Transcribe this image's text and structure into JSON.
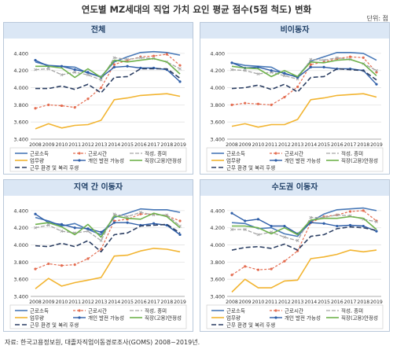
{
  "title": "연도별 MZ세대의 직업 가치 요인 평균 점수(5점 척도) 변화",
  "unit": "단위: 점",
  "source": "자료: 한국고용정보원, 대졸자직업이동경로조사(GOMS) 2008~2019년.",
  "colors": {
    "근로소득": "#4a7ab8",
    "근로시간": "#e46d51",
    "적성, 흥미": "#a6a6a6",
    "업무량": "#f2b430",
    "개인 발전 가능성": "#2e5ea8",
    "직장(고용)안정성": "#6fb24d",
    "근무 환경 및 복리 후생": "#2c3f63"
  },
  "chart_data": [
    {
      "type": "line",
      "title": "전체",
      "x": [
        "2008",
        "2009",
        "2010",
        "2011",
        "2012",
        "2013",
        "2014",
        "2015",
        "2016",
        "2017",
        "2018",
        "2019"
      ],
      "ylim": [
        3.4,
        4.5
      ],
      "yticks": [
        "3.400",
        "3.600",
        "3.800",
        "4.000",
        "4.200",
        "4.400"
      ],
      "series": [
        {
          "name": "근로소득",
          "values": [
            4.3,
            4.26,
            4.25,
            4.24,
            4.17,
            4.13,
            4.3,
            4.36,
            4.41,
            4.42,
            4.41,
            4.38
          ]
        },
        {
          "name": "근로시간",
          "values": [
            3.76,
            3.8,
            3.79,
            3.77,
            3.87,
            4.0,
            4.27,
            4.32,
            4.36,
            4.37,
            4.39,
            4.26
          ]
        },
        {
          "name": "적성, 흥미",
          "values": [
            4.21,
            4.22,
            4.15,
            4.18,
            4.15,
            4.09,
            4.35,
            4.33,
            4.35,
            4.34,
            4.3,
            4.22
          ]
        },
        {
          "name": "업무량",
          "values": [
            3.52,
            3.58,
            3.53,
            3.56,
            3.57,
            3.62,
            3.86,
            3.88,
            3.91,
            3.92,
            3.93,
            3.9
          ]
        },
        {
          "name": "개인 발전 가능성",
          "values": [
            4.32,
            4.25,
            4.25,
            4.21,
            4.18,
            4.12,
            4.24,
            4.25,
            4.23,
            4.23,
            4.21,
            4.07
          ]
        },
        {
          "name": "직장(고용)안정성",
          "values": [
            4.25,
            4.25,
            4.23,
            4.12,
            4.22,
            4.12,
            4.32,
            4.3,
            4.32,
            4.34,
            4.3,
            4.16
          ]
        },
        {
          "name": "근무 환경 및 복리 후생",
          "values": [
            3.99,
            3.99,
            4.02,
            3.98,
            4.04,
            3.94,
            4.12,
            4.13,
            4.22,
            4.22,
            4.22,
            4.11
          ]
        }
      ]
    },
    {
      "type": "line",
      "title": "비이동자",
      "x": [
        "2008",
        "2009",
        "2010",
        "2011",
        "2012",
        "2013",
        "2014",
        "2015",
        "2016",
        "2017",
        "2018",
        "2019"
      ],
      "ylim": [
        3.4,
        4.5
      ],
      "yticks": [
        "3.400",
        "3.600",
        "3.800",
        "4.000",
        "4.200",
        "4.400"
      ],
      "series": [
        {
          "name": "근로소득",
          "values": [
            4.29,
            4.26,
            4.25,
            4.24,
            4.16,
            4.13,
            4.31,
            4.36,
            4.41,
            4.41,
            4.4,
            4.32
          ]
        },
        {
          "name": "근로시간",
          "values": [
            3.8,
            3.82,
            3.81,
            3.8,
            3.89,
            4.01,
            4.27,
            4.3,
            4.34,
            4.36,
            4.35,
            4.18
          ]
        },
        {
          "name": "적성, 흥미",
          "values": [
            4.21,
            4.2,
            4.16,
            4.18,
            4.14,
            4.1,
            4.33,
            4.32,
            4.35,
            4.33,
            4.28,
            4.2
          ]
        },
        {
          "name": "업무량",
          "values": [
            3.55,
            3.58,
            3.54,
            3.57,
            3.57,
            3.63,
            3.86,
            3.88,
            3.91,
            3.92,
            3.93,
            3.89
          ]
        },
        {
          "name": "개인 발전 가능성",
          "values": [
            4.29,
            4.23,
            4.24,
            4.2,
            4.17,
            4.12,
            4.24,
            4.24,
            4.22,
            4.22,
            4.2,
            4.04
          ]
        },
        {
          "name": "직장(고용)안정성",
          "values": [
            4.25,
            4.23,
            4.22,
            4.13,
            4.2,
            4.13,
            4.3,
            4.29,
            4.32,
            4.33,
            4.28,
            4.14
          ]
        },
        {
          "name": "근무 환경 및 복리 후생",
          "values": [
            3.99,
            4.0,
            4.03,
            3.98,
            4.04,
            3.95,
            4.12,
            4.13,
            4.22,
            4.21,
            4.2,
            4.09
          ]
        }
      ]
    },
    {
      "type": "line",
      "title": "지역 간 이동자",
      "x": [
        "2008",
        "2009",
        "2010",
        "2011",
        "2012",
        "2013",
        "2014",
        "2015",
        "2016",
        "2017",
        "2018",
        "2019"
      ],
      "ylim": [
        3.4,
        4.5
      ],
      "yticks": [
        "3.400",
        "3.600",
        "3.800",
        "4.000",
        "4.200",
        "4.400"
      ],
      "series": [
        {
          "name": "근로소득",
          "values": [
            4.32,
            4.28,
            4.22,
            4.25,
            4.18,
            4.12,
            4.32,
            4.37,
            4.42,
            4.41,
            4.41,
            4.38
          ]
        },
        {
          "name": "근로시간",
          "values": [
            3.72,
            3.78,
            3.76,
            3.77,
            3.84,
            3.95,
            4.28,
            4.3,
            4.36,
            4.36,
            4.34,
            4.28
          ]
        },
        {
          "name": "적성, 흥미",
          "values": [
            4.2,
            4.23,
            4.16,
            4.14,
            4.16,
            4.05,
            4.36,
            4.33,
            4.38,
            4.35,
            4.35,
            4.22
          ]
        },
        {
          "name": "업무량",
          "values": [
            3.49,
            3.61,
            3.52,
            3.56,
            3.59,
            3.62,
            3.87,
            3.88,
            3.93,
            3.96,
            3.95,
            3.92
          ]
        },
        {
          "name": "개인 발전 가능성",
          "values": [
            4.36,
            4.26,
            4.24,
            4.2,
            4.19,
            4.15,
            4.26,
            4.26,
            4.23,
            4.25,
            4.23,
            4.12
          ]
        },
        {
          "name": "직장(고용)안정성",
          "values": [
            4.24,
            4.26,
            4.21,
            4.12,
            4.24,
            4.09,
            4.34,
            4.31,
            4.3,
            4.37,
            4.33,
            4.2
          ]
        },
        {
          "name": "근무 환경 및 복리 후생",
          "values": [
            3.99,
            3.98,
            4.02,
            3.98,
            4.05,
            3.92,
            4.12,
            4.14,
            4.22,
            4.23,
            4.24,
            4.14
          ]
        }
      ]
    },
    {
      "type": "line",
      "title": "수도권 이동자",
      "x": [
        "2008",
        "2009",
        "2010",
        "2011",
        "2012",
        "2013",
        "2014",
        "2015",
        "2016",
        "2017",
        "2018",
        "2019"
      ],
      "ylim": [
        3.4,
        4.5
      ],
      "yticks": [
        "3.400",
        "3.600",
        "3.800",
        "4.000",
        "4.200",
        "4.400"
      ],
      "series": [
        {
          "name": "근로소득",
          "values": [
            4.26,
            4.25,
            4.19,
            4.2,
            4.13,
            4.1,
            4.27,
            4.36,
            4.41,
            4.42,
            4.43,
            4.4
          ]
        },
        {
          "name": "근로시간",
          "values": [
            3.65,
            3.75,
            3.71,
            3.72,
            3.81,
            3.93,
            4.26,
            4.33,
            4.35,
            4.39,
            4.4,
            4.28
          ]
        },
        {
          "name": "적성, 흥미",
          "values": [
            4.18,
            4.18,
            4.12,
            4.15,
            4.09,
            4.05,
            4.32,
            4.32,
            4.35,
            4.34,
            4.3,
            4.27
          ]
        },
        {
          "name": "업무량",
          "values": [
            3.45,
            3.6,
            3.5,
            3.5,
            3.58,
            3.59,
            3.84,
            3.86,
            3.89,
            3.94,
            3.92,
            3.94
          ]
        },
        {
          "name": "개인 발전 가능성",
          "values": [
            4.37,
            4.28,
            4.3,
            4.22,
            4.22,
            4.13,
            4.26,
            4.25,
            4.22,
            4.23,
            4.22,
            4.16
          ]
        },
        {
          "name": "직장(고용)안정성",
          "values": [
            4.22,
            4.22,
            4.2,
            4.13,
            4.2,
            4.12,
            4.29,
            4.31,
            4.31,
            4.33,
            4.31,
            4.18
          ]
        },
        {
          "name": "근무 환경 및 복리 후생",
          "values": [
            3.94,
            3.97,
            3.98,
            3.96,
            4.01,
            3.94,
            4.1,
            4.12,
            4.19,
            4.21,
            4.2,
            4.17
          ]
        }
      ]
    }
  ]
}
